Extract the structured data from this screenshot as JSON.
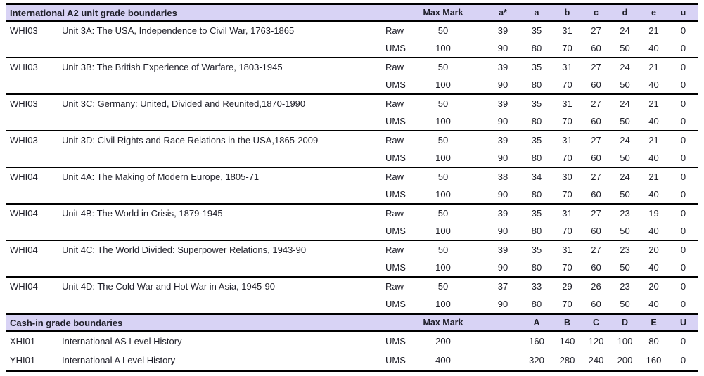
{
  "colors": {
    "band_background": "#d8d3f5",
    "border": "#000000",
    "text": "#1e1e28"
  },
  "unit_section": {
    "title": "International A2 unit grade boundaries",
    "max_mark_label": "Max Mark",
    "grade_headers": [
      "a*",
      "a",
      "b",
      "c",
      "d",
      "e",
      "u"
    ],
    "groups": [
      {
        "code": "WHI03",
        "title": "Unit 3A: The USA, Independence to Civil War, 1763-1865",
        "rows": [
          {
            "type": "Raw",
            "max": "50",
            "grades": [
              "39",
              "35",
              "31",
              "27",
              "24",
              "21",
              "0"
            ]
          },
          {
            "type": "UMS",
            "max": "100",
            "grades": [
              "90",
              "80",
              "70",
              "60",
              "50",
              "40",
              "0"
            ]
          }
        ]
      },
      {
        "code": "WHI03",
        "title": "Unit 3B: The British Experience of Warfare, 1803-1945",
        "rows": [
          {
            "type": "Raw",
            "max": "50",
            "grades": [
              "39",
              "35",
              "31",
              "27",
              "24",
              "21",
              "0"
            ]
          },
          {
            "type": "UMS",
            "max": "100",
            "grades": [
              "90",
              "80",
              "70",
              "60",
              "50",
              "40",
              "0"
            ]
          }
        ]
      },
      {
        "code": "WHI03",
        "title": "Unit 3C: Germany: United, Divided and Reunited,1870-1990",
        "rows": [
          {
            "type": "Raw",
            "max": "50",
            "grades": [
              "39",
              "35",
              "31",
              "27",
              "24",
              "21",
              "0"
            ]
          },
          {
            "type": "UMS",
            "max": "100",
            "grades": [
              "90",
              "80",
              "70",
              "60",
              "50",
              "40",
              "0"
            ]
          }
        ]
      },
      {
        "code": "WHI03",
        "title": "Unit 3D: Civil Rights and Race Relations in the USA,1865-2009",
        "rows": [
          {
            "type": "Raw",
            "max": "50",
            "grades": [
              "39",
              "35",
              "31",
              "27",
              "24",
              "21",
              "0"
            ]
          },
          {
            "type": "UMS",
            "max": "100",
            "grades": [
              "90",
              "80",
              "70",
              "60",
              "50",
              "40",
              "0"
            ]
          }
        ]
      },
      {
        "code": "WHI04",
        "title": "Unit 4A: The Making of Modern Europe, 1805-71",
        "rows": [
          {
            "type": "Raw",
            "max": "50",
            "grades": [
              "38",
              "34",
              "30",
              "27",
              "24",
              "21",
              "0"
            ]
          },
          {
            "type": "UMS",
            "max": "100",
            "grades": [
              "90",
              "80",
              "70",
              "60",
              "50",
              "40",
              "0"
            ]
          }
        ]
      },
      {
        "code": "WHI04",
        "title": "Unit 4B: The World in Crisis, 1879-1945",
        "rows": [
          {
            "type": "Raw",
            "max": "50",
            "grades": [
              "39",
              "35",
              "31",
              "27",
              "23",
              "19",
              "0"
            ]
          },
          {
            "type": "UMS",
            "max": "100",
            "grades": [
              "90",
              "80",
              "70",
              "60",
              "50",
              "40",
              "0"
            ]
          }
        ]
      },
      {
        "code": "WHI04",
        "title": "Unit 4C: The World Divided: Superpower Relations, 1943-90",
        "rows": [
          {
            "type": "Raw",
            "max": "50",
            "grades": [
              "39",
              "35",
              "31",
              "27",
              "23",
              "20",
              "0"
            ]
          },
          {
            "type": "UMS",
            "max": "100",
            "grades": [
              "90",
              "80",
              "70",
              "60",
              "50",
              "40",
              "0"
            ]
          }
        ]
      },
      {
        "code": "WHI04",
        "title": "Unit 4D: The Cold War and Hot War in Asia, 1945-90",
        "rows": [
          {
            "type": "Raw",
            "max": "50",
            "grades": [
              "37",
              "33",
              "29",
              "26",
              "23",
              "20",
              "0"
            ]
          },
          {
            "type": "UMS",
            "max": "100",
            "grades": [
              "90",
              "80",
              "70",
              "60",
              "50",
              "40",
              "0"
            ]
          }
        ]
      }
    ]
  },
  "cashin_section": {
    "title": "Cash-in grade boundaries",
    "max_mark_label": "Max Mark",
    "grade_headers": [
      "A",
      "B",
      "C",
      "D",
      "E",
      "U"
    ],
    "rows": [
      {
        "code": "XHI01",
        "title": "International AS Level History",
        "type": "UMS",
        "max": "200",
        "grades": [
          "160",
          "140",
          "120",
          "100",
          "80",
          "0"
        ]
      },
      {
        "code": "YHI01",
        "title": "International A Level History",
        "type": "UMS",
        "max": "400",
        "grades": [
          "320",
          "280",
          "240",
          "200",
          "160",
          "0"
        ]
      }
    ]
  }
}
